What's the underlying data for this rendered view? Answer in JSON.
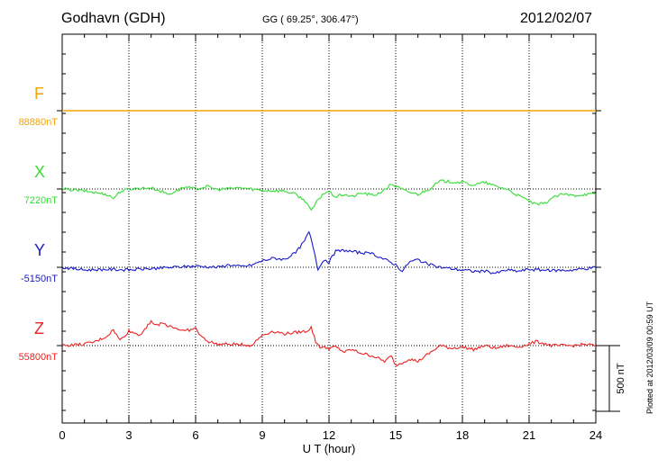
{
  "header": {
    "station": "Godhavn (GDH)",
    "coords": "GG ( 69.25°, 306.47°)",
    "date": "2012/02/07"
  },
  "side_note": "Plotted at 2012/03/09 00:59 UT",
  "chart_data": {
    "type": "line",
    "xlabel": "U T (hour)",
    "xlim": [
      0,
      24
    ],
    "xticks": [
      "0",
      "3",
      "6",
      "9",
      "12",
      "15",
      "18",
      "21",
      "24"
    ],
    "scale_bar_label": "500 nT",
    "scale_bar_nT": 500,
    "grid": true,
    "series": [
      {
        "name": "F",
        "base_label": "88880nT",
        "color": "#f5a300",
        "x": [
          0,
          24
        ],
        "y": [
          0,
          0
        ]
      },
      {
        "name": "X",
        "base_label": "7220nT",
        "color": "#33dd33",
        "x": [
          0,
          1,
          2,
          2.3,
          2.6,
          3,
          4,
          4.8,
          5.5,
          6,
          6.5,
          7,
          8,
          8.5,
          9,
          10,
          10.5,
          11,
          11.2,
          11.4,
          11.7,
          12,
          12.3,
          12.7,
          13,
          13.5,
          14,
          14.5,
          14.8,
          15,
          15.5,
          16,
          16.5,
          17,
          18,
          18.5,
          19,
          19.5,
          20,
          20.5,
          21,
          21.3,
          21.7,
          22,
          22.5,
          23,
          23.5,
          24
        ],
        "y": [
          0,
          -15,
          -40,
          -70,
          -20,
          0,
          10,
          -40,
          15,
          0,
          20,
          -5,
          10,
          0,
          -10,
          -15,
          -40,
          -100,
          -170,
          -110,
          -40,
          -20,
          -60,
          -40,
          -60,
          -30,
          -50,
          -10,
          40,
          20,
          -20,
          -40,
          0,
          60,
          50,
          30,
          50,
          20,
          0,
          -50,
          -90,
          -120,
          -110,
          -70,
          -40,
          -50,
          -40,
          -40
        ]
      },
      {
        "name": "Y",
        "base_label": "-5150nT",
        "color": "#1a1acc",
        "x": [
          0,
          1,
          2,
          3,
          4,
          5,
          6,
          7,
          7.5,
          8,
          8.5,
          9,
          9.5,
          10,
          10.5,
          10.9,
          11.1,
          11.3,
          11.5,
          11.8,
          12,
          12.3,
          12.7,
          13,
          14,
          14.5,
          15,
          15.3,
          15.6,
          16,
          16.5,
          17,
          17.5,
          18,
          18.5,
          19,
          19.5,
          20,
          20.5,
          21,
          21.5,
          22,
          23,
          23.5,
          24
        ],
        "y": [
          0,
          -20,
          -15,
          -20,
          -10,
          0,
          10,
          0,
          20,
          5,
          15,
          50,
          70,
          60,
          110,
          200,
          270,
          150,
          -10,
          60,
          40,
          120,
          130,
          120,
          100,
          60,
          20,
          -30,
          40,
          60,
          20,
          0,
          -10,
          -20,
          -30,
          -30,
          -45,
          -20,
          -30,
          -15,
          -20,
          -25,
          -20,
          -10,
          0
        ]
      },
      {
        "name": "Z",
        "base_label": "55800nT",
        "color": "#ee2222",
        "x": [
          0,
          1,
          1.5,
          2,
          2.3,
          2.6,
          3,
          3.5,
          4,
          4.2,
          4.5,
          5,
          5.5,
          6,
          6.3,
          6.6,
          7,
          8,
          8.5,
          9,
          9.5,
          10,
          10.5,
          11,
          11.2,
          11.4,
          11.6,
          12,
          12.3,
          12.7,
          13,
          13.5,
          14,
          14.5,
          14.8,
          15,
          15.3,
          15.6,
          16,
          16.5,
          17,
          17.5,
          18,
          18.5,
          19,
          19.5,
          20,
          20.5,
          21,
          21.3,
          21.6,
          22,
          22.5,
          23,
          23.5,
          24
        ],
        "y": [
          0,
          10,
          30,
          70,
          120,
          40,
          110,
          80,
          190,
          150,
          170,
          140,
          110,
          130,
          60,
          30,
          10,
          10,
          0,
          80,
          110,
          90,
          100,
          110,
          140,
          30,
          -10,
          -20,
          -10,
          -50,
          -30,
          -60,
          -80,
          -120,
          -80,
          -150,
          -130,
          -100,
          -120,
          -60,
          0,
          -20,
          -10,
          -30,
          0,
          -20,
          0,
          -10,
          10,
          30,
          20,
          0,
          0,
          0,
          10,
          0
        ]
      }
    ]
  }
}
